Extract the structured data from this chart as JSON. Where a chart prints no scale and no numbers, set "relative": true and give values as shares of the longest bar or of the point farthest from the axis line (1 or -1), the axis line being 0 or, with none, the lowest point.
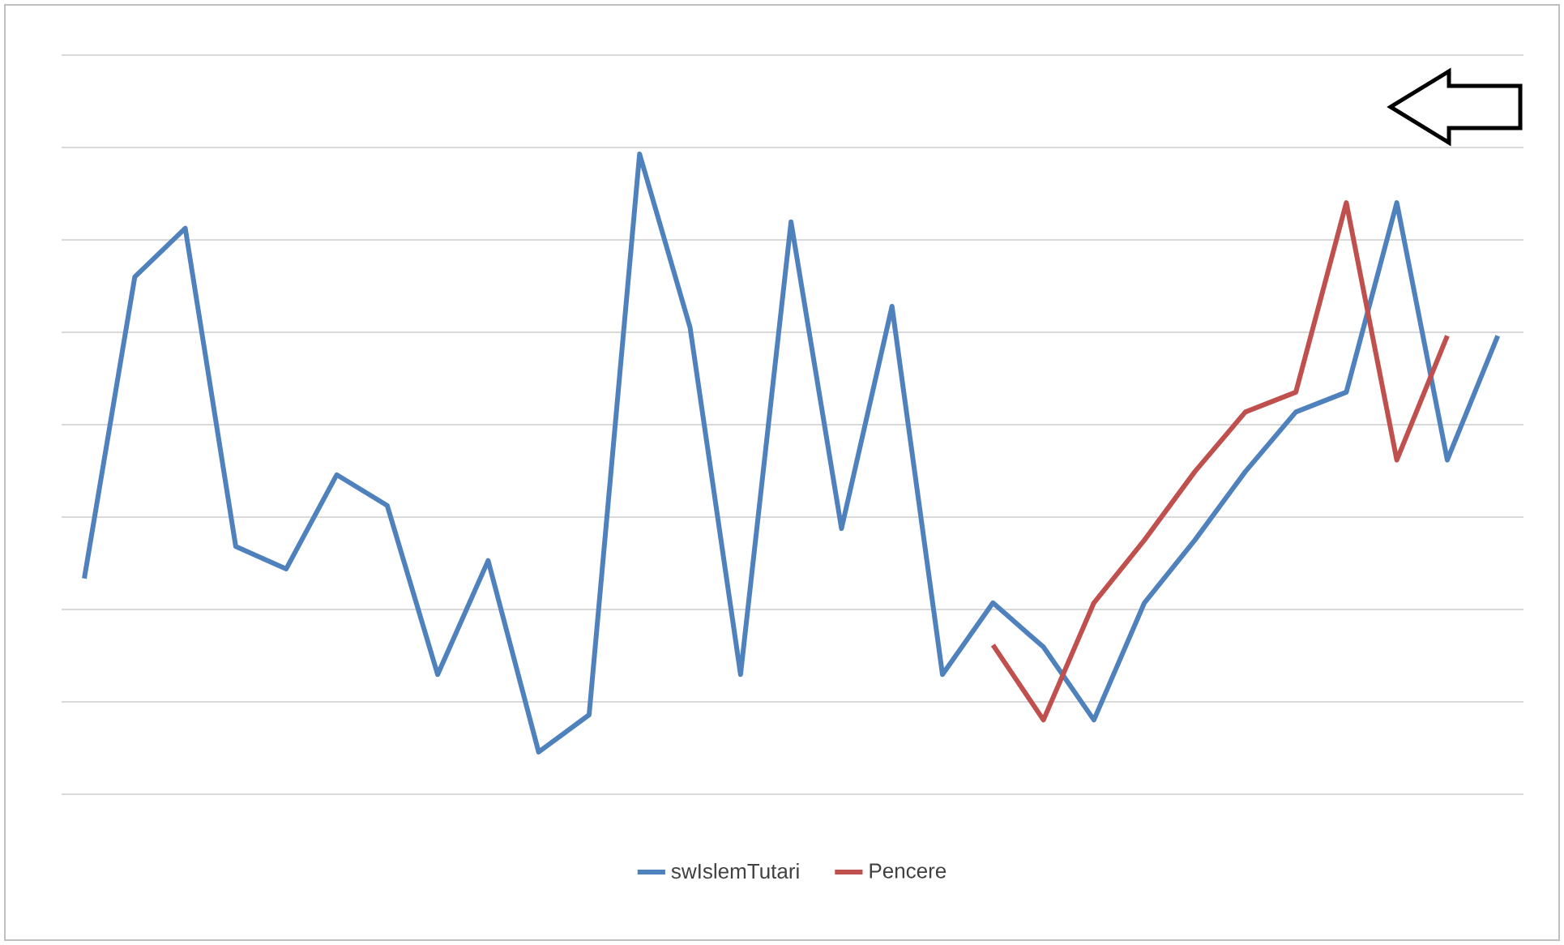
{
  "chart_data": {
    "type": "line",
    "relative": true,
    "categories": [
      null,
      null,
      null,
      null,
      null,
      null,
      null,
      null,
      null,
      null,
      null,
      null,
      null,
      null,
      null,
      null,
      null,
      null,
      null,
      null,
      null,
      null,
      null,
      null,
      null,
      null,
      null,
      null,
      null
    ],
    "series": [
      {
        "name": "swIslemTutari",
        "color": "#4f81bd",
        "values": [
          0.337,
          0.808,
          0.884,
          0.387,
          0.352,
          0.499,
          0.451,
          0.187,
          0.365,
          0.066,
          0.124,
          1,
          0.729,
          0.187,
          0.894,
          0.415,
          0.762,
          0.187,
          0.299,
          0.23,
          0.116,
          0.299,
          0.397,
          0.504,
          0.597,
          0.628,
          0.924,
          0.522,
          0.716
        ]
      },
      {
        "name": "Pencere",
        "color": "#c0504d",
        "values": [
          null,
          null,
          null,
          null,
          null,
          null,
          null,
          null,
          null,
          null,
          null,
          null,
          null,
          null,
          null,
          null,
          null,
          null,
          0.233,
          0.116,
          0.299,
          0.397,
          0.504,
          0.597,
          0.628,
          0.924,
          0.522,
          0.716,
          null
        ]
      }
    ],
    "grid": "y",
    "legend": "bottom",
    "marker": "none",
    "line_style": "solid"
  }
}
